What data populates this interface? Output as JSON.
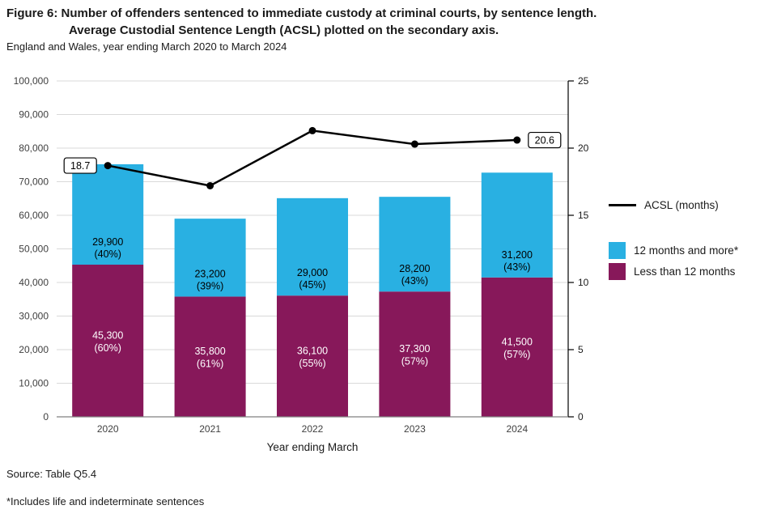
{
  "figure": {
    "title_line1": "Figure 6: Number of offenders sentenced to immediate custody at criminal courts, by sentence length.",
    "title_line2": "Average Custodial Sentence Length (ACSL) plotted on the secondary axis.",
    "subtitle": "England and Wales, year ending March 2020 to March 2024",
    "source": "Source: Table Q5.4",
    "footnote": "*Includes life and indeterminate sentences"
  },
  "legend": {
    "line_label": "ACSL (months)",
    "series_more_label": "12 months and more*",
    "series_less_label": "Less than 12 months"
  },
  "chart_data": {
    "type": "bar",
    "subtype": "stacked-bars-with-secondary-axis-line",
    "title": "Figure 6: Number of offenders sentenced to immediate custody at criminal courts, by sentence length. Average Custodial Sentence Length (ACSL) plotted on the secondary axis.",
    "xlabel": "Year ending March",
    "categories": [
      "2020",
      "2021",
      "2022",
      "2023",
      "2024"
    ],
    "series": [
      {
        "name": "Less than 12 months",
        "color": "#87185A",
        "label_color": "#ffffff",
        "values": [
          45300,
          35800,
          36100,
          37300,
          41500
        ],
        "data_labels": [
          [
            "45,300",
            "(60%)"
          ],
          [
            "35,800",
            "(61%)"
          ],
          [
            "36,100",
            "(55%)"
          ],
          [
            "37,300",
            "(57%)"
          ],
          [
            "41,500",
            "(57%)"
          ]
        ]
      },
      {
        "name": "12 months and more*",
        "color": "#29B0E2",
        "label_color": "#000000",
        "values": [
          29900,
          23200,
          29000,
          28200,
          31200
        ],
        "data_labels": [
          [
            "29,900",
            "(40%)"
          ],
          [
            "23,200",
            "(39%)"
          ],
          [
            "29,000",
            "(45%)"
          ],
          [
            "28,200",
            "(43%)"
          ],
          [
            "31,200",
            "(43%)"
          ]
        ]
      }
    ],
    "line_series": {
      "name": "ACSL (months)",
      "color": "#000000",
      "axis": "secondary",
      "values": [
        18.7,
        17.2,
        21.3,
        20.3,
        20.6
      ],
      "annotations": [
        {
          "index": 0,
          "label": "18.7"
        },
        {
          "index": 4,
          "label": "20.6"
        }
      ]
    },
    "primary_axis": {
      "min": 0,
      "max": 100000,
      "step": 10000
    },
    "secondary_axis": {
      "min": 0,
      "max": 25,
      "step": 5
    },
    "grid": true,
    "legend_position": "right"
  }
}
